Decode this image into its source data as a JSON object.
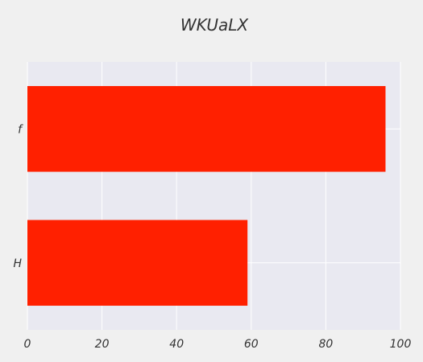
{
  "chart_data": {
    "type": "bar",
    "orientation": "horizontal",
    "title": "WKUaLX",
    "xlabel": "",
    "ylabel": "",
    "categories": [
      "H",
      "f"
    ],
    "values": [
      59,
      96
    ],
    "xlim": [
      0,
      100
    ],
    "xticks": [
      "0",
      "20",
      "40",
      "60",
      "80",
      "100"
    ],
    "grid": true,
    "legend": "none",
    "colors": {
      "bar": "#ff2000",
      "plot_bg": "#e9e9f1",
      "page_bg": "#f0f0f0",
      "grid": "#ffffff",
      "text": "#333333"
    }
  }
}
